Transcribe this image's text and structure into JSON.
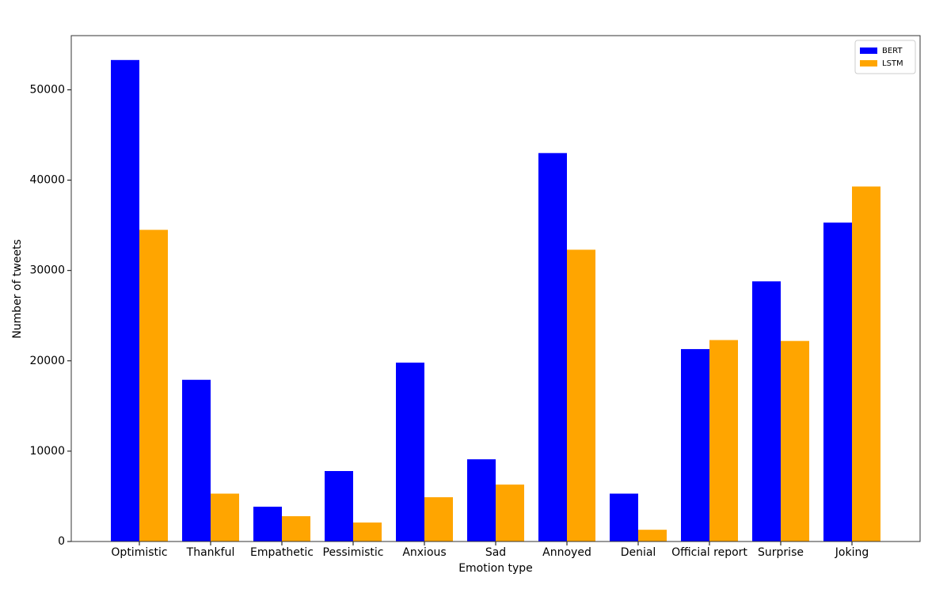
{
  "chart_data": {
    "type": "bar",
    "x_label": "Emotion type",
    "y_label": "Number of tweets",
    "categories": [
      "Optimistic",
      "Thankful",
      "Empathetic",
      "Pessimistic",
      "Anxious",
      "Sad",
      "Annoyed",
      "Denial",
      "Official report",
      "Surprise",
      "Joking"
    ],
    "series": [
      {
        "name": "BERT",
        "color": "#0000ff",
        "values": [
          53300,
          17900,
          3850,
          7800,
          19800,
          9100,
          43000,
          5300,
          21300,
          28800,
          35300
        ]
      },
      {
        "name": "LSTM",
        "color": "#ffa500",
        "values": [
          34500,
          5300,
          2800,
          2100,
          4900,
          6300,
          32300,
          1300,
          22300,
          22200,
          39300
        ]
      }
    ],
    "ylim": [
      0,
      56000
    ],
    "yticks": [
      0,
      10000,
      20000,
      30000,
      40000,
      50000
    ],
    "legend": "upper right"
  }
}
